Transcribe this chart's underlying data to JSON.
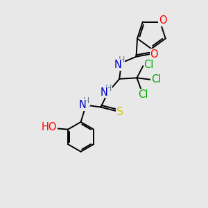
{
  "background_color": "#e8e8e8",
  "atom_colors": {
    "C": "#000000",
    "N": "#0000cd",
    "O": "#ff0000",
    "S": "#cccc00",
    "Cl": "#00aa00",
    "H": "#708090"
  },
  "bond_color": "#000000",
  "label_fontsize": 10.5,
  "small_label_fontsize": 9,
  "figsize": [
    3.0,
    3.0
  ],
  "dpi": 100,
  "xlim": [
    0,
    10
  ],
  "ylim": [
    0,
    10
  ]
}
